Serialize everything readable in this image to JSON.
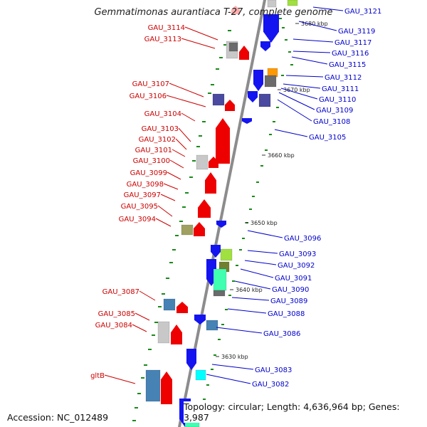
{
  "title": "Gemmatimonas aurantiaca T-27, complete genome",
  "accession_text": "Accession: NC_012489",
  "topology_text": "Topology: circular; Length: 4,636,964 bp; Genes: 3,987",
  "kbp_ticks": [
    "3680 kbp",
    "3670 kbp",
    "3660 kbp",
    "3650 kbp",
    "3640 kbp",
    "3630 kbp"
  ],
  "left_labels": [
    "GAU_3114",
    "GAU_3113",
    "GAU_3107",
    "GAU_3106",
    "GAU_3104",
    "GAU_3103",
    "GAU_3102",
    "GAU_3101",
    "GAU_3100",
    "GAU_3099",
    "GAU_3098",
    "GAU_3097",
    "GAU_3095",
    "GAU_3094",
    "GAU_3087",
    "GAU_3085",
    "GAU_3084",
    "gltB"
  ],
  "right_labels": [
    "GAU_3121",
    "GAU_3119",
    "GAU_3117",
    "GAU_3116",
    "GAU_3115",
    "GAU_3112",
    "GAU_3111",
    "GAU_3110",
    "GAU_3109",
    "GAU_3108",
    "GAU_3105",
    "GAU_3096",
    "GAU_3093",
    "GAU_3092",
    "GAU_3091",
    "GAU_3090",
    "GAU_3089",
    "GAU_3088",
    "GAU_3086",
    "GAU_3083",
    "GAU_3082"
  ],
  "colors": {
    "axis": "#8c8c8c",
    "forward_strand": "#ee0000",
    "reverse_strand": "#1414f0",
    "left_label_text": "#cc0000",
    "right_label_text": "#0000cc",
    "gc_marks": "#1a8a1a",
    "other_genes": [
      "#c8c8c8",
      "#6b6b6b",
      "#4a4aa0",
      "#a0a060",
      "#4682b4",
      "#00ffff",
      "#40ffb0",
      "#a0e040",
      "#708030",
      "#ff9900"
    ]
  }
}
